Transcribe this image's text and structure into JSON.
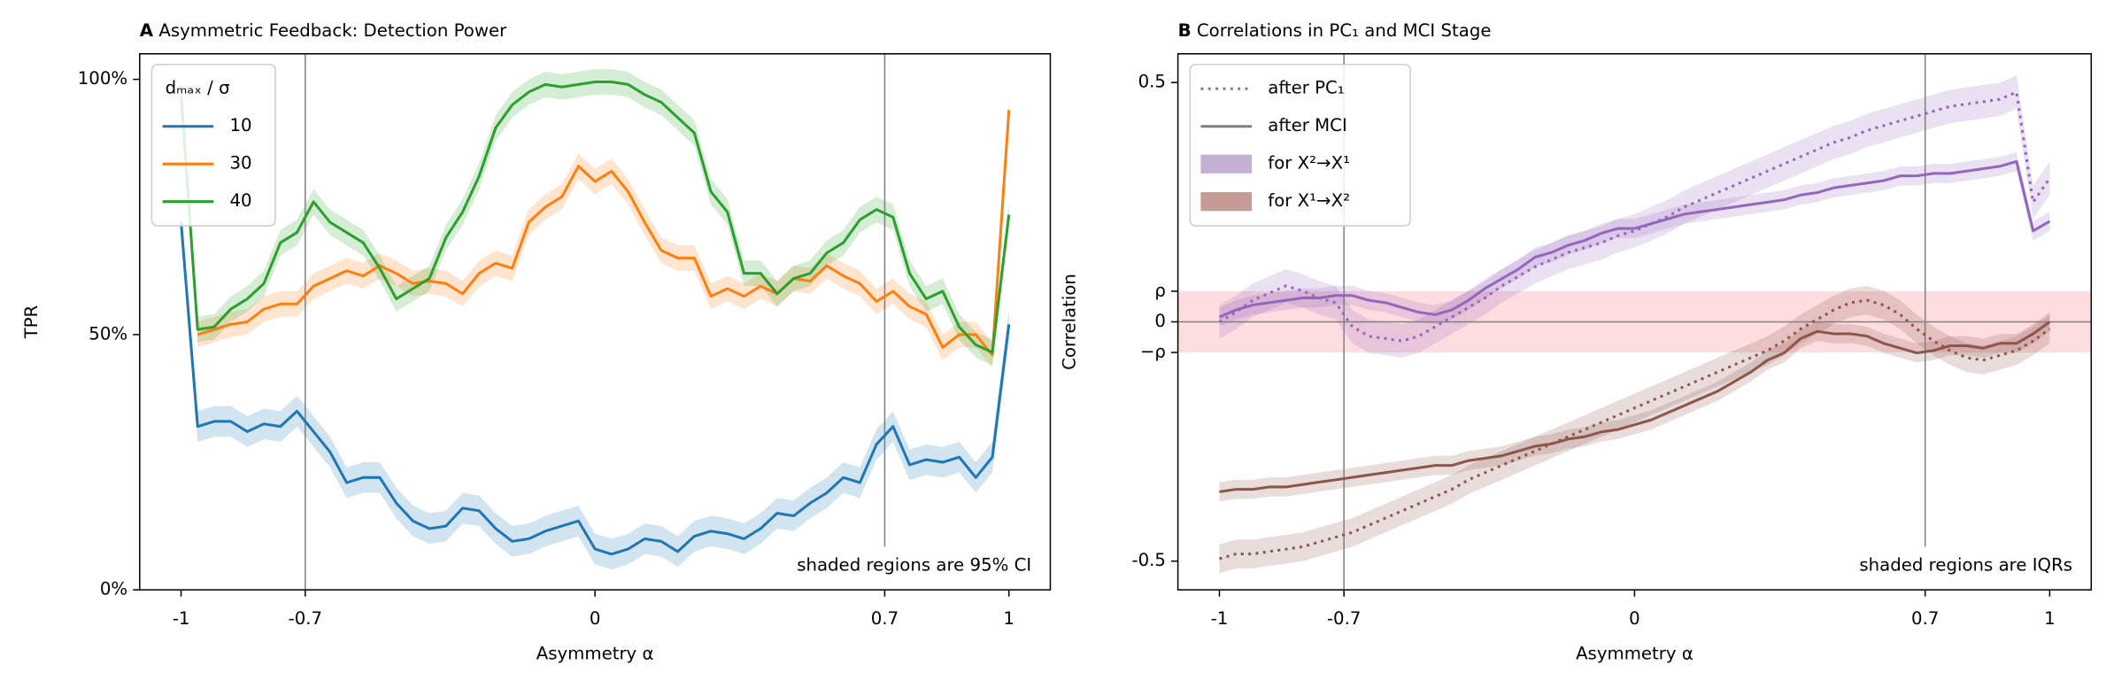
{
  "chart_data": [
    {
      "type": "line",
      "panel_label": "A",
      "title": "Asymmetric Feedback: Detection Power",
      "x_label": "Asymmetry α",
      "y_label": "TPR",
      "xlim": [
        -1.1,
        1.1
      ],
      "ylim": [
        0,
        105
      ],
      "xticks": [
        -1,
        -0.7,
        0,
        0.7,
        1
      ],
      "yticks": [
        {
          "value": 0,
          "label": "0%"
        },
        {
          "value": 50,
          "label": "50%"
        },
        {
          "value": 100,
          "label": "100%"
        }
      ],
      "vlines": [
        -0.7,
        0.7
      ],
      "legend_title": "dₘₐₓ / σ",
      "legend_loc": "upper left",
      "annotation": "shaded regions are 95% CI",
      "x": [
        -1,
        -0.96,
        -0.92,
        -0.88,
        -0.84,
        -0.8,
        -0.76,
        -0.72,
        -0.68,
        -0.64,
        -0.6,
        -0.56,
        -0.52,
        -0.48,
        -0.44,
        -0.4,
        -0.36,
        -0.32,
        -0.28,
        -0.24,
        -0.2,
        -0.16,
        -0.12,
        -0.08,
        -0.04,
        0,
        0.04,
        0.08,
        0.12,
        0.16,
        0.2,
        0.24,
        0.28,
        0.32,
        0.36,
        0.4,
        0.44,
        0.48,
        0.52,
        0.56,
        0.6,
        0.64,
        0.68,
        0.72,
        0.76,
        0.8,
        0.84,
        0.88,
        0.92,
        0.96,
        1
      ],
      "series": [
        {
          "name": "10",
          "color": "#1f77b4",
          "band_halfwidth": 3,
          "values": [
            72,
            32,
            33,
            33,
            31,
            32.5,
            32,
            35,
            31,
            27,
            21,
            22,
            22,
            17,
            13.5,
            12,
            12.5,
            16,
            15.5,
            12,
            9.5,
            10,
            11.5,
            12.5,
            13.5,
            8,
            7,
            8,
            10,
            9.5,
            7.5,
            10.5,
            11.5,
            11,
            10,
            12,
            15,
            14.5,
            17,
            19,
            22,
            21,
            28.5,
            32,
            24.5,
            25.5,
            25,
            26,
            22,
            26,
            52
          ]
        },
        {
          "name": "30",
          "color": "#ff7f0e",
          "band_halfwidth": 2.5,
          "values": [
            null,
            50,
            51,
            52,
            52.5,
            55,
            56,
            56,
            59.5,
            61,
            62.5,
            61.5,
            63.5,
            62,
            60,
            60.5,
            60,
            58,
            62,
            64,
            63,
            72,
            75,
            77,
            83,
            80,
            82,
            78,
            72,
            66.5,
            65,
            65,
            57.5,
            59,
            57.5,
            59.5,
            58,
            61,
            60.5,
            63.5,
            61.5,
            60,
            56.5,
            58.5,
            55.5,
            54,
            47.5,
            50,
            50,
            46,
            94
          ]
        },
        {
          "name": "40",
          "color": "#2ca02c",
          "band_halfwidth": 2.5,
          "values": [
            97,
            51,
            51.5,
            55,
            57,
            60,
            68,
            70,
            76,
            72,
            70,
            68,
            63,
            57,
            59,
            61,
            69,
            74,
            81,
            90.5,
            95,
            97.5,
            99,
            98.5,
            99,
            99.5,
            99.5,
            99,
            97,
            95.5,
            92.5,
            89.5,
            78,
            74,
            62,
            62,
            58,
            61,
            62,
            66,
            68,
            72.5,
            74.5,
            73,
            62,
            57,
            58.5,
            51.5,
            48,
            46.5,
            73.5
          ]
        }
      ]
    },
    {
      "type": "line",
      "panel_label": "B",
      "title": "Correlations in PC₁ and MCI Stage",
      "x_label": "Asymmetry α",
      "y_label": "Correlation",
      "xlim": [
        -1.1,
        1.1
      ],
      "ylim": [
        -0.56,
        0.56
      ],
      "xticks": [
        -1,
        -0.7,
        0,
        0.7,
        1
      ],
      "yticks": [
        -0.5,
        {
          "value": -0.064,
          "label": "−ρ"
        },
        0,
        {
          "value": 0.064,
          "label": "ρ"
        },
        0.5
      ],
      "vlines": [
        -0.7,
        0.7
      ],
      "hlines": [
        0
      ],
      "hband": [
        -0.064,
        0.064
      ],
      "hband_color": "#fddde0",
      "legend_loc": "upper left",
      "legend": [
        {
          "label": "after PC₁",
          "dash": "dotted",
          "color": "#7f7f7f"
        },
        {
          "label": "after MCI",
          "dash": "solid",
          "color": "#7f7f7f"
        },
        {
          "label": "for X²→X¹",
          "patch": true,
          "color": "#c5b0d5"
        },
        {
          "label": "for X¹→X²",
          "patch": true,
          "color": "#c49c94"
        }
      ],
      "annotation": "shaded regions are IQRs",
      "x": [
        -1,
        -0.96,
        -0.92,
        -0.88,
        -0.84,
        -0.8,
        -0.76,
        -0.72,
        -0.68,
        -0.64,
        -0.6,
        -0.56,
        -0.52,
        -0.48,
        -0.44,
        -0.4,
        -0.36,
        -0.32,
        -0.28,
        -0.24,
        -0.2,
        -0.16,
        -0.12,
        -0.08,
        -0.04,
        0,
        0.04,
        0.08,
        0.12,
        0.16,
        0.2,
        0.24,
        0.28,
        0.32,
        0.36,
        0.4,
        0.44,
        0.48,
        0.52,
        0.56,
        0.6,
        0.64,
        0.68,
        0.72,
        0.76,
        0.8,
        0.84,
        0.88,
        0.92,
        0.96,
        1
      ],
      "series": [
        {
          "color": "#9467bd",
          "dash": "dotted",
          "band_halfwidth": 0.035,
          "values": [
            0,
            0.02,
            0.045,
            0.06,
            0.075,
            0.065,
            0.05,
            0.04,
            -0.01,
            -0.03,
            -0.035,
            -0.04,
            -0.03,
            -0.01,
            0.01,
            0.03,
            0.05,
            0.075,
            0.095,
            0.115,
            0.13,
            0.145,
            0.155,
            0.165,
            0.18,
            0.19,
            0.205,
            0.22,
            0.24,
            0.255,
            0.27,
            0.285,
            0.3,
            0.315,
            0.33,
            0.345,
            0.36,
            0.375,
            0.385,
            0.4,
            0.41,
            0.42,
            0.43,
            0.44,
            0.45,
            0.455,
            0.46,
            0.465,
            0.48,
            0.25,
            0.3
          ]
        },
        {
          "color": "#9467bd",
          "dash": "solid",
          "band_halfwidth": 0.02,
          "values": [
            0.01,
            0.025,
            0.035,
            0.04,
            0.045,
            0.05,
            0.05,
            0.055,
            0.055,
            0.045,
            0.04,
            0.03,
            0.02,
            0.015,
            0.025,
            0.045,
            0.07,
            0.09,
            0.11,
            0.135,
            0.145,
            0.16,
            0.17,
            0.185,
            0.195,
            0.195,
            0.205,
            0.215,
            0.225,
            0.23,
            0.235,
            0.24,
            0.245,
            0.25,
            0.255,
            0.265,
            0.27,
            0.28,
            0.285,
            0.29,
            0.295,
            0.305,
            0.305,
            0.31,
            0.31,
            0.315,
            0.32,
            0.325,
            0.335,
            0.19,
            0.21
          ]
        },
        {
          "color": "#8c564b",
          "dash": "dotted",
          "band_halfwidth": 0.03,
          "values": [
            -0.495,
            -0.485,
            -0.485,
            -0.48,
            -0.475,
            -0.47,
            -0.46,
            -0.45,
            -0.44,
            -0.425,
            -0.41,
            -0.395,
            -0.38,
            -0.365,
            -0.35,
            -0.33,
            -0.315,
            -0.3,
            -0.285,
            -0.27,
            -0.255,
            -0.24,
            -0.225,
            -0.21,
            -0.195,
            -0.18,
            -0.165,
            -0.15,
            -0.135,
            -0.12,
            -0.105,
            -0.09,
            -0.075,
            -0.06,
            -0.04,
            -0.015,
            0.005,
            0.025,
            0.04,
            0.045,
            0.035,
            0.015,
            -0.015,
            -0.04,
            -0.06,
            -0.075,
            -0.08,
            -0.07,
            -0.06,
            -0.04,
            -0.015
          ]
        },
        {
          "color": "#8c564b",
          "dash": "solid",
          "band_halfwidth": 0.02,
          "values": [
            -0.355,
            -0.35,
            -0.35,
            -0.345,
            -0.345,
            -0.34,
            -0.335,
            -0.33,
            -0.325,
            -0.32,
            -0.315,
            -0.31,
            -0.305,
            -0.3,
            -0.3,
            -0.29,
            -0.285,
            -0.28,
            -0.27,
            -0.26,
            -0.255,
            -0.245,
            -0.24,
            -0.23,
            -0.225,
            -0.215,
            -0.205,
            -0.19,
            -0.175,
            -0.16,
            -0.145,
            -0.125,
            -0.105,
            -0.08,
            -0.065,
            -0.035,
            -0.02,
            -0.025,
            -0.025,
            -0.03,
            -0.045,
            -0.055,
            -0.065,
            -0.06,
            -0.05,
            -0.05,
            -0.055,
            -0.045,
            -0.045,
            -0.025,
            0
          ]
        }
      ]
    }
  ]
}
